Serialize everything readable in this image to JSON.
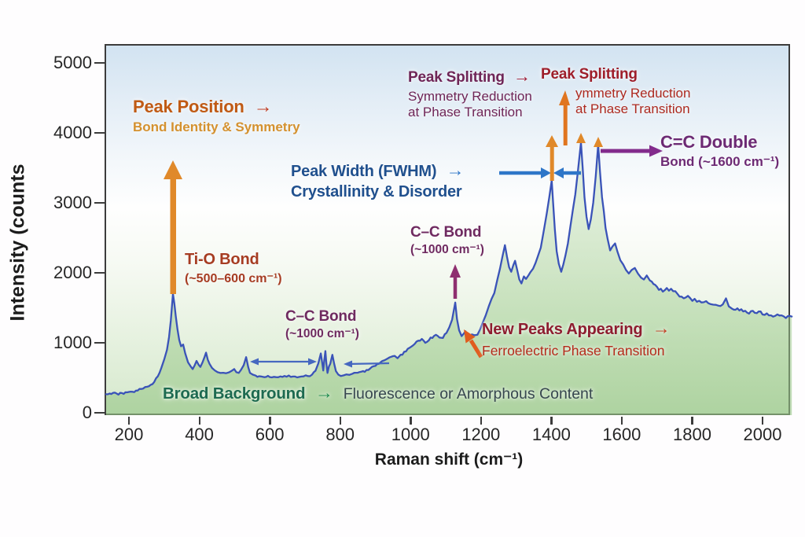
{
  "figure": {
    "y_axis": {
      "label": "Intensity (counts",
      "ticks": [
        "5000",
        "4000",
        "3000",
        "2000",
        "1000",
        "0"
      ]
    },
    "x_axis": {
      "label": "Raman shift (cm⁻¹)",
      "ticks": [
        "200",
        "400",
        "600",
        "800",
        "1000",
        "1200",
        "1400",
        "1600",
        "1800",
        "2000"
      ]
    }
  },
  "annotations": {
    "peak_position": {
      "title": "Peak Position",
      "arrow": "→",
      "subtitle": "Bond Identity & Symmetry"
    },
    "ti_o_bond": {
      "title": "Ti-O Bond",
      "subtitle": "(~500–600 cm⁻¹)"
    },
    "cc_bond_left": {
      "title": "C–C Bond",
      "subtitle": "(~1000 cm⁻¹)"
    },
    "peak_width": {
      "title": "Peak Width (FWHM)",
      "arrow": "→",
      "subtitle": "Crystallinity & Disorder"
    },
    "split_left": {
      "title": "Peak Splitting",
      "arrow": "→",
      "line2": "Symmetry Reduction",
      "line3": "at Phase Transition"
    },
    "split_right": {
      "title": "Peak Splitting",
      "line2": "ymmetry Reduction",
      "line3": "at Phase Transition"
    },
    "cc_double": {
      "title": "C=C Double",
      "subtitle": "Bond (~1600 cm⁻¹)"
    },
    "cc_bond_mid": {
      "title": "C–C Bond",
      "subtitle": "(~1000 cm⁻¹)"
    },
    "new_peaks": {
      "title": "New Peaks Appearing",
      "arrow": "→",
      "subtitle": "Ferroelectric Phase Transition"
    },
    "broad_background": {
      "title": "Broad Background",
      "arrow": "→",
      "rest": "Fluorescence or Amorphous Content"
    }
  },
  "colors": {
    "spectrum_line": "#3a53b8",
    "area_fill": "#a9cf96",
    "orange_arrow": "#e0892a",
    "peak_position_title": "#c05a14",
    "peak_position_sub": "#d4912f",
    "ti_o": "#a63c22",
    "cc_purple": "#6f2a60",
    "peak_width_blue": "#20508e",
    "blue_arrow": "#2e76c8",
    "split_left_purple": "#6f2557",
    "split_right_red": "#9e1e2a",
    "split_right_lines": "#ad2a20",
    "cc_double_purple": "#6d2a74",
    "purple_arrow": "#822b8c",
    "new_peaks_title": "#8e1d30",
    "new_peaks_sub": "#b52a1a",
    "diag_orange": "#e05c1e",
    "broad_green": "#1d6a50",
    "green_arrow": "#1d8a4e",
    "fluorescence_gray": "#37474f"
  },
  "chart_data": {
    "type": "line",
    "title": "",
    "xlabel": "Raman shift (cm⁻¹)",
    "ylabel": "Intensity (counts",
    "xlim": [
      135,
      2083
    ],
    "ylim": [
      0,
      5000
    ],
    "x_ticks": [
      200,
      400,
      600,
      800,
      1000,
      1200,
      1400,
      1600,
      1800,
      2000
    ],
    "y_ticks": [
      5000,
      4000,
      3000,
      2000,
      1000,
      0
    ],
    "grid": false,
    "legend": "none",
    "annotated_peaks": [
      {
        "label": "Ti-O bond peak",
        "raman_shift": 325,
        "intensity": 1700
      },
      {
        "label": "C–C bond peak",
        "raman_shift": 1127,
        "intensity": 1575
      },
      {
        "label": "FWHM-marked peak",
        "raman_shift": 1401,
        "intensity": 3320
      },
      {
        "label": "split peak 1 (C=C)",
        "raman_shift": 1484,
        "intensity": 3860
      },
      {
        "label": "split peak 2 (C=C)",
        "raman_shift": 1533,
        "intensity": 3830
      }
    ],
    "series": [
      {
        "name": "Raman spectrum",
        "points": [
          [
            135,
            265
          ],
          [
            150,
            268
          ],
          [
            165,
            275
          ],
          [
            180,
            282
          ],
          [
            195,
            292
          ],
          [
            210,
            300
          ],
          [
            225,
            318
          ],
          [
            240,
            345
          ],
          [
            252,
            372
          ],
          [
            262,
            400
          ],
          [
            272,
            440
          ],
          [
            282,
            520
          ],
          [
            292,
            640
          ],
          [
            300,
            760
          ],
          [
            308,
            900
          ],
          [
            314,
            1080
          ],
          [
            319,
            1320
          ],
          [
            325,
            1700
          ],
          [
            329,
            1560
          ],
          [
            333,
            1380
          ],
          [
            338,
            1190
          ],
          [
            343,
            1040
          ],
          [
            348,
            950
          ],
          [
            354,
            975
          ],
          [
            360,
            850
          ],
          [
            368,
            720
          ],
          [
            375,
            665
          ],
          [
            381,
            625
          ],
          [
            387,
            680
          ],
          [
            392,
            740
          ],
          [
            398,
            685
          ],
          [
            403,
            655
          ],
          [
            409,
            720
          ],
          [
            415,
            800
          ],
          [
            419,
            860
          ],
          [
            424,
            760
          ],
          [
            429,
            700
          ],
          [
            436,
            640
          ],
          [
            444,
            605
          ],
          [
            452,
            580
          ],
          [
            460,
            568
          ],
          [
            468,
            572
          ],
          [
            476,
            565
          ],
          [
            484,
            578
          ],
          [
            492,
            600
          ],
          [
            499,
            625
          ],
          [
            505,
            580
          ],
          [
            512,
            570
          ],
          [
            518,
            610
          ],
          [
            526,
            680
          ],
          [
            533,
            795
          ],
          [
            539,
            650
          ],
          [
            544,
            570
          ],
          [
            552,
            545
          ],
          [
            560,
            532
          ],
          [
            570,
            522
          ],
          [
            580,
            515
          ],
          [
            590,
            512
          ],
          [
            600,
            510
          ],
          [
            612,
            514
          ],
          [
            624,
            508
          ],
          [
            636,
            512
          ],
          [
            648,
            516
          ],
          [
            660,
            512
          ],
          [
            672,
            518
          ],
          [
            684,
            512
          ],
          [
            696,
            520
          ],
          [
            708,
            525
          ],
          [
            720,
            545
          ],
          [
            730,
            600
          ],
          [
            738,
            705
          ],
          [
            745,
            848
          ],
          [
            749,
            720
          ],
          [
            752,
            605
          ],
          [
            755,
            750
          ],
          [
            758,
            882
          ],
          [
            761,
            700
          ],
          [
            764,
            570
          ],
          [
            768,
            660
          ],
          [
            772,
            700
          ],
          [
            778,
            828
          ],
          [
            783,
            700
          ],
          [
            788,
            595
          ],
          [
            795,
            545
          ],
          [
            802,
            525
          ],
          [
            810,
            535
          ],
          [
            818,
            548
          ],
          [
            826,
            542
          ],
          [
            835,
            558
          ],
          [
            845,
            572
          ],
          [
            855,
            582
          ],
          [
            865,
            596
          ],
          [
            875,
            612
          ],
          [
            885,
            632
          ],
          [
            895,
            665
          ],
          [
            905,
            695
          ],
          [
            915,
            722
          ],
          [
            925,
            748
          ],
          [
            935,
            775
          ],
          [
            945,
            800
          ],
          [
            955,
            812
          ],
          [
            963,
            780
          ],
          [
            972,
            830
          ],
          [
            982,
            872
          ],
          [
            992,
            915
          ],
          [
            1002,
            945
          ],
          [
            1012,
            985
          ],
          [
            1022,
            1030
          ],
          [
            1032,
            1055
          ],
          [
            1042,
            1000
          ],
          [
            1052,
            1035
          ],
          [
            1062,
            1068
          ],
          [
            1072,
            1115
          ],
          [
            1082,
            1075
          ],
          [
            1092,
            1068
          ],
          [
            1102,
            1140
          ],
          [
            1110,
            1220
          ],
          [
            1118,
            1330
          ],
          [
            1127,
            1575
          ],
          [
            1132,
            1340
          ],
          [
            1138,
            1180
          ],
          [
            1145,
            1095
          ],
          [
            1151,
            1130
          ],
          [
            1156,
            1165
          ],
          [
            1161,
            1100
          ],
          [
            1167,
            1068
          ],
          [
            1174,
            1120
          ],
          [
            1182,
            1108
          ],
          [
            1190,
            1115
          ],
          [
            1198,
            1195
          ],
          [
            1206,
            1300
          ],
          [
            1214,
            1400
          ],
          [
            1222,
            1520
          ],
          [
            1230,
            1625
          ],
          [
            1238,
            1710
          ],
          [
            1246,
            1890
          ],
          [
            1254,
            2060
          ],
          [
            1261,
            2230
          ],
          [
            1268,
            2395
          ],
          [
            1274,
            2230
          ],
          [
            1280,
            2080
          ],
          [
            1286,
            2015
          ],
          [
            1292,
            2110
          ],
          [
            1297,
            2172
          ],
          [
            1303,
            2040
          ],
          [
            1309,
            1905
          ],
          [
            1315,
            1848
          ],
          [
            1322,
            1948
          ],
          [
            1328,
            1912
          ],
          [
            1335,
            1965
          ],
          [
            1341,
            2012
          ],
          [
            1348,
            2060
          ],
          [
            1355,
            2140
          ],
          [
            1362,
            2240
          ],
          [
            1370,
            2360
          ],
          [
            1379,
            2620
          ],
          [
            1387,
            2850
          ],
          [
            1394,
            3080
          ],
          [
            1401,
            3320
          ],
          [
            1405,
            3000
          ],
          [
            1410,
            2620
          ],
          [
            1415,
            2310
          ],
          [
            1421,
            2130
          ],
          [
            1428,
            2015
          ],
          [
            1434,
            2120
          ],
          [
            1440,
            2250
          ],
          [
            1447,
            2420
          ],
          [
            1454,
            2660
          ],
          [
            1461,
            2900
          ],
          [
            1468,
            3120
          ],
          [
            1475,
            3430
          ],
          [
            1484,
            3860
          ],
          [
            1489,
            3500
          ],
          [
            1494,
            3080
          ],
          [
            1500,
            2800
          ],
          [
            1506,
            2625
          ],
          [
            1512,
            2760
          ],
          [
            1519,
            3000
          ],
          [
            1526,
            3380
          ],
          [
            1533,
            3830
          ],
          [
            1538,
            3450
          ],
          [
            1544,
            3080
          ],
          [
            1549,
            2880
          ],
          [
            1554,
            2640
          ],
          [
            1560,
            2480
          ],
          [
            1567,
            2320
          ],
          [
            1574,
            2380
          ],
          [
            1581,
            2420
          ],
          [
            1588,
            2300
          ],
          [
            1596,
            2180
          ],
          [
            1604,
            2120
          ],
          [
            1612,
            2040
          ],
          [
            1620,
            1990
          ],
          [
            1628,
            2040
          ],
          [
            1637,
            2070
          ],
          [
            1646,
            1990
          ],
          [
            1655,
            1930
          ],
          [
            1663,
            1905
          ],
          [
            1671,
            1962
          ],
          [
            1680,
            1890
          ],
          [
            1690,
            1840
          ],
          [
            1700,
            1800
          ],
          [
            1711,
            1772
          ],
          [
            1722,
            1752
          ],
          [
            1734,
            1745
          ],
          [
            1746,
            1738
          ],
          [
            1758,
            1700
          ],
          [
            1770,
            1660
          ],
          [
            1782,
            1648
          ],
          [
            1794,
            1640
          ],
          [
            1807,
            1628
          ],
          [
            1820,
            1600
          ],
          [
            1833,
            1580
          ],
          [
            1846,
            1565
          ],
          [
            1860,
            1545
          ],
          [
            1874,
            1532
          ],
          [
            1887,
            1548
          ],
          [
            1896,
            1635
          ],
          [
            1904,
            1520
          ],
          [
            1913,
            1488
          ],
          [
            1923,
            1472
          ],
          [
            1934,
            1462
          ],
          [
            1945,
            1448
          ],
          [
            1956,
            1432
          ],
          [
            1967,
            1452
          ],
          [
            1978,
            1428
          ],
          [
            1989,
            1448
          ],
          [
            2000,
            1405
          ],
          [
            2012,
            1420
          ],
          [
            2024,
            1392
          ],
          [
            2036,
            1385
          ],
          [
            2048,
            1390
          ],
          [
            2060,
            1378
          ],
          [
            2072,
            1382
          ],
          [
            2083,
            1375
          ]
        ]
      }
    ]
  }
}
